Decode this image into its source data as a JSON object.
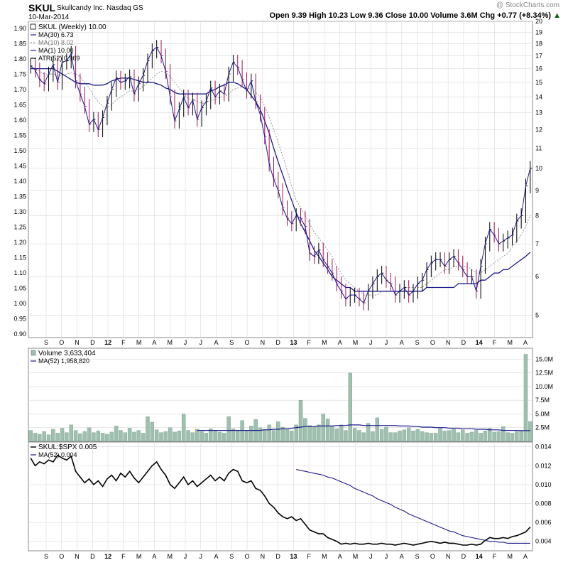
{
  "header": {
    "symbol": "SKUL",
    "company": "Skullcandy Inc.  Nasdaq GS",
    "date": "10-Mar-2014",
    "quote": "Open 9.39  High 10.23  Low 9.36  Close 10.00  Volume 3.6M  Chg +0.77 (+8.34%)",
    "change_arrow": "▲",
    "watermark": "@ StockCharts.com"
  },
  "chart_data": [
    {
      "type": "line",
      "title": "SKUL (Weekly) 10.00",
      "legend": [
        "MA(30) 6.73",
        "MA(10) 8.02",
        "MA(1) 10.00",
        "ATR(52) 0.969"
      ],
      "left_ticks": [
        "1.90",
        "1.85",
        "1.80",
        "1.75",
        "1.70",
        "1.65",
        "1.60",
        "1.55",
        "1.50",
        "1.45",
        "1.40",
        "1.35",
        "1.30",
        "1.25",
        "1.20",
        "1.15",
        "1.10",
        "1.05",
        "1.00",
        "0.95",
        "0.90"
      ],
      "right_ticks": [
        "20",
        "19",
        "18",
        "17",
        "16",
        "15",
        "14",
        "13",
        "12",
        "11",
        "10",
        "9",
        "8",
        "7",
        "6",
        "5"
      ],
      "x_labels": [
        "S",
        "O",
        "N",
        "D",
        "12",
        "F",
        "M",
        "A",
        "M",
        "J",
        "J",
        "A",
        "S",
        "O",
        "N",
        "D",
        "13",
        "F",
        "M",
        "A",
        "M",
        "J",
        "J",
        "A",
        "S",
        "O",
        "N",
        "D",
        "14",
        "F",
        "M",
        "A"
      ],
      "ylim_left": [
        0.9,
        1.9
      ],
      "ylim_right_log": [
        4.5,
        20
      ],
      "log_scale": true,
      "price": [
        16.2,
        15.9,
        15.2,
        14.9,
        15.6,
        16.3,
        15.0,
        16.5,
        16.6,
        17.2,
        15.1,
        14.2,
        13.4,
        12.3,
        12.6,
        12.0,
        12.7,
        13.6,
        14.5,
        15.3,
        15.0,
        15.1,
        15.4,
        14.2,
        14.9,
        15.5,
        16.6,
        17.4,
        17.7,
        17.0,
        15.8,
        14.0,
        12.5,
        13.2,
        14.0,
        13.3,
        13.8,
        12.6,
        13.3,
        13.7,
        14.6,
        14.0,
        14.4,
        14.2,
        15.6,
        16.5,
        16.1,
        15.2,
        14.4,
        15.1,
        13.7,
        12.9,
        11.6,
        10.2,
        9.5,
        9.0,
        8.3,
        7.9,
        7.7,
        8.0,
        7.9,
        7.6,
        6.7,
        6.6,
        6.8,
        6.5,
        6.3,
        6.1,
        5.8,
        5.6,
        5.4,
        5.5,
        5.5,
        5.4,
        5.3,
        5.6,
        5.8,
        6.0,
        6.1,
        5.9,
        5.8,
        5.5,
        5.6,
        5.7,
        5.5,
        5.6,
        5.8,
        5.9,
        6.2,
        6.4,
        6.5,
        6.5,
        6.3,
        6.5,
        6.6,
        6.4,
        6.2,
        6.0,
        6.0,
        5.6,
        6.3,
        7.0,
        7.5,
        7.3,
        7.0,
        7.1,
        7.2,
        7.3,
        7.8,
        8.0,
        9.2,
        10.0
      ],
      "ma30": [
        16.0,
        16.0,
        16.0,
        16.0,
        16.0,
        16.0,
        15.8,
        15.6,
        15.4,
        15.2,
        15.0,
        14.9,
        14.9,
        14.9,
        14.8,
        14.8,
        14.8,
        14.9,
        15.1,
        15.2,
        15.3,
        15.3,
        15.3,
        15.2,
        15.1,
        15.0,
        15.0,
        15.0,
        14.9,
        14.8,
        14.6,
        14.5,
        14.3,
        14.2,
        14.2,
        14.2,
        14.2,
        14.2,
        14.2,
        14.2,
        14.4,
        14.5,
        14.7,
        14.8,
        15.0,
        15.0,
        14.9,
        14.7,
        14.5,
        14.1,
        13.7,
        13.2,
        12.5,
        11.8,
        11.0,
        10.3,
        9.7,
        9.1,
        8.6,
        8.1,
        7.7,
        7.4,
        7.1,
        6.8,
        6.6,
        6.4,
        6.2,
        6.0,
        5.9,
        5.8,
        5.7,
        5.7,
        5.6,
        5.6,
        5.6,
        5.6,
        5.6,
        5.6,
        5.6,
        5.6,
        5.6,
        5.6,
        5.6,
        5.6,
        5.6,
        5.6,
        5.6,
        5.6,
        5.7,
        5.7,
        5.7,
        5.7,
        5.7,
        5.7,
        5.7,
        5.8,
        5.8,
        5.8,
        5.8,
        5.8,
        5.9,
        5.9,
        6.0,
        6.1,
        6.1,
        6.2,
        6.2,
        6.3,
        6.4,
        6.5,
        6.6,
        6.73
      ],
      "ma10": [
        16.2,
        16.0,
        15.8,
        15.6,
        15.6,
        15.6,
        15.5,
        15.5,
        15.6,
        15.7,
        15.6,
        15.4,
        15.0,
        14.6,
        14.1,
        13.7,
        13.4,
        13.3,
        13.5,
        13.8,
        14.0,
        14.2,
        14.4,
        14.4,
        14.5,
        14.7,
        15.0,
        15.3,
        15.6,
        15.8,
        15.7,
        15.4,
        15.0,
        14.6,
        14.2,
        13.9,
        13.8,
        13.7,
        13.6,
        13.6,
        13.8,
        13.8,
        14.0,
        14.0,
        14.2,
        14.5,
        14.6,
        14.7,
        14.6,
        14.5,
        14.3,
        14.0,
        13.4,
        12.7,
        12.0,
        11.3,
        10.6,
        9.9,
        9.2,
        8.6,
        8.3,
        8.0,
        7.7,
        7.4,
        7.2,
        7.0,
        6.8,
        6.6,
        6.3,
        6.1,
        5.9,
        5.8,
        5.7,
        5.6,
        5.5,
        5.5,
        5.5,
        5.5,
        5.6,
        5.6,
        5.6,
        5.6,
        5.6,
        5.7,
        5.7,
        5.7,
        5.7,
        5.7,
        5.8,
        5.9,
        6.0,
        6.1,
        6.2,
        6.2,
        6.3,
        6.3,
        6.3,
        6.3,
        6.2,
        6.1,
        6.1,
        6.2,
        6.3,
        6.4,
        6.5,
        6.6,
        6.7,
        6.9,
        7.1,
        7.3,
        7.6,
        8.02
      ]
    },
    {
      "type": "bar",
      "title": "Volume 3,633,404",
      "ma_label": "MA(52) 1,958,820",
      "right_ticks": [
        "15.0M",
        "12.5M",
        "10.0M",
        "7.5M",
        "5.0M",
        "2.5M"
      ],
      "ylim": [
        0,
        17
      ],
      "values": [
        2.0,
        1.5,
        1.3,
        1.8,
        1.2,
        2.2,
        1.5,
        2.4,
        1.6,
        3.0,
        2.0,
        1.4,
        1.8,
        2.5,
        1.6,
        1.9,
        1.5,
        1.3,
        1.7,
        2.8,
        2.0,
        1.6,
        2.4,
        1.7,
        2.0,
        1.5,
        4.5,
        3.5,
        2.1,
        1.6,
        1.8,
        2.5,
        1.7,
        1.9,
        5.0,
        2.0,
        1.6,
        2.2,
        1.8,
        1.5,
        2.3,
        2.0,
        1.7,
        1.5,
        4.5,
        2.3,
        1.9,
        3.8,
        2.0,
        2.8,
        4.0,
        2.5,
        2.2,
        3.0,
        2.0,
        3.6,
        2.6,
        2.2,
        1.9,
        3.0,
        7.5,
        4.2,
        2.9,
        2.6,
        3.0,
        5.0,
        4.1,
        2.7,
        2.3,
        3.0,
        2.0,
        12.5,
        2.4,
        2.0,
        1.6,
        3.3,
        1.8,
        4.3,
        2.2,
        2.6,
        1.6,
        1.6,
        1.9,
        2.1,
        2.5,
        1.9,
        2.2,
        1.8,
        1.6,
        1.5,
        1.5,
        2.4,
        1.9,
        2.0,
        2.2,
        1.6,
        2.1,
        1.5,
        1.7,
        2.0,
        1.5,
        1.9,
        2.4,
        1.7,
        1.8,
        2.7,
        1.6,
        1.5,
        1.8,
        1.9,
        15.9,
        3.63
      ],
      "ma_values": [
        2.0,
        2.0,
        2.0,
        2.0,
        2.0,
        2.0,
        2.0,
        2.0,
        2.0,
        2.0,
        2.0,
        2.0,
        2.0,
        2.0,
        2.0,
        2.0,
        2.0,
        2.0,
        2.0,
        2.0,
        2.0,
        2.0,
        2.0,
        2.0,
        2.0,
        2.0,
        2.0,
        2.0,
        2.0,
        2.0,
        2.0,
        2.0,
        2.0,
        2.0,
        2.0,
        2.0,
        2.0,
        2.0,
        2.0,
        2.0,
        2.0,
        2.0,
        2.0,
        2.0,
        2.0,
        2.0,
        2.0,
        2.0,
        2.0,
        2.0,
        2.0,
        2.0,
        2.1,
        2.1,
        2.2,
        2.2,
        2.3,
        2.3,
        2.4,
        2.5,
        2.6,
        2.7,
        2.7,
        2.7,
        2.8,
        2.8,
        2.8,
        2.8,
        2.9,
        2.9,
        2.9,
        3.0,
        3.0,
        3.0,
        2.9,
        2.9,
        2.9,
        2.9,
        2.9,
        2.9,
        2.9,
        2.9,
        2.8,
        2.8,
        2.8,
        2.7,
        2.7,
        2.6,
        2.6,
        2.6,
        2.5,
        2.5,
        2.5,
        2.4,
        2.4,
        2.4,
        2.3,
        2.3,
        2.3,
        2.2,
        2.2,
        2.2,
        2.1,
        2.1,
        2.1,
        2.0,
        2.0,
        2.0,
        2.0,
        1.96,
        1.96,
        1.96
      ],
      "ma_start_index": 37
    },
    {
      "type": "line",
      "title": "SKUL:$SPX 0.005",
      "ma_label": "MA(52) 0.004",
      "right_ticks": [
        "0.014",
        "0.012",
        "0.010",
        "0.008",
        "0.006",
        "0.004"
      ],
      "ylim": [
        0.003,
        0.0145
      ],
      "ratio": [
        0.0128,
        0.012,
        0.0124,
        0.0122,
        0.0126,
        0.0124,
        0.0131,
        0.0128,
        0.0126,
        0.013,
        0.0114,
        0.0108,
        0.0102,
        0.0106,
        0.01,
        0.0104,
        0.0098,
        0.0106,
        0.011,
        0.0104,
        0.0112,
        0.0108,
        0.0114,
        0.0107,
        0.0102,
        0.0108,
        0.0114,
        0.012,
        0.0124,
        0.0116,
        0.011,
        0.01,
        0.0096,
        0.0102,
        0.0108,
        0.01,
        0.0104,
        0.0098,
        0.0102,
        0.0106,
        0.011,
        0.0104,
        0.0108,
        0.0104,
        0.0112,
        0.0116,
        0.0114,
        0.0104,
        0.0102,
        0.0104,
        0.0096,
        0.0094,
        0.0088,
        0.008,
        0.0076,
        0.007,
        0.0066,
        0.0064,
        0.0066,
        0.0062,
        0.0064,
        0.0058,
        0.0052,
        0.005,
        0.0048,
        0.0048,
        0.0044,
        0.0042,
        0.004,
        0.0037,
        0.0038,
        0.0037,
        0.0038,
        0.0037,
        0.0037,
        0.0038,
        0.0037,
        0.0037,
        0.0038,
        0.0037,
        0.0037,
        0.0036,
        0.0037,
        0.0038,
        0.0037,
        0.0036,
        0.0037,
        0.0038,
        0.0039,
        0.004,
        0.0039,
        0.0038,
        0.0039,
        0.0038,
        0.0038,
        0.0037,
        0.0036,
        0.0036,
        0.0037,
        0.0036,
        0.0037,
        0.0041,
        0.0044,
        0.0043,
        0.0043,
        0.0044,
        0.0043,
        0.0045,
        0.0046,
        0.0048,
        0.005,
        0.0055
      ],
      "ma": [
        0.0116,
        0.0115,
        0.0114,
        0.0113,
        0.0112,
        0.0111,
        0.011,
        0.0108,
        0.0107,
        0.0105,
        0.0103,
        0.0101,
        0.0099,
        0.0096,
        0.0094,
        0.0092,
        0.009,
        0.0088,
        0.0085,
        0.0083,
        0.0081,
        0.0079,
        0.0076,
        0.0074,
        0.0072,
        0.0069,
        0.0067,
        0.0065,
        0.0063,
        0.0061,
        0.0059,
        0.0057,
        0.0055,
        0.0053,
        0.0051,
        0.005,
        0.0048,
        0.0046,
        0.0045,
        0.0044,
        0.0043,
        0.0042,
        0.0041,
        0.004,
        0.004,
        0.0039,
        0.0039,
        0.0038,
        0.0038,
        0.0038,
        0.0038,
        0.0038,
        0.0038
      ],
      "ma_start_index": 59
    }
  ],
  "colors": {
    "up": "#000000",
    "down": "#a0145a",
    "ma30": "#1a1a8c",
    "ma10": "#999999",
    "volume": "#9fbfaf",
    "grid": "#d9d9d9",
    "ratio": "#000000"
  }
}
